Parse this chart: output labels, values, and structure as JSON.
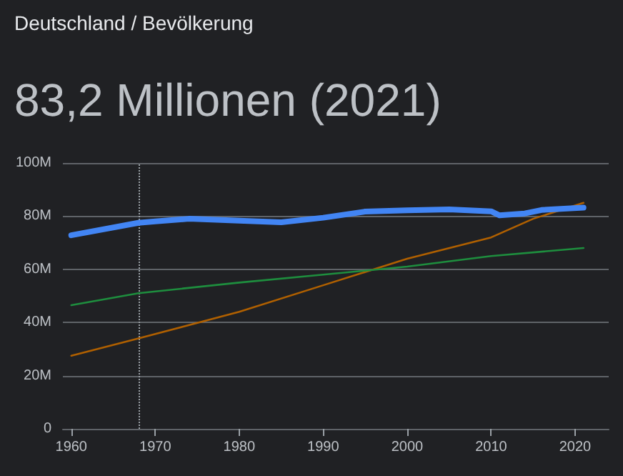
{
  "chart_data": {
    "type": "line",
    "title": "83,2 Millionen (2021)",
    "annotations": [
      "Deutschland / Bevölkerung"
    ],
    "x": [
      1960,
      1968,
      1970,
      1974,
      1980,
      1985,
      1990,
      1995,
      2000,
      2005,
      2010,
      2011,
      2014,
      2016,
      2021
    ],
    "series": [
      {
        "color": "#4285f4",
        "values": [
          72.8,
          77.5,
          78,
          79,
          78.3,
          77.7,
          79.4,
          81.7,
          82.2,
          82.5,
          81.8,
          80.3,
          81,
          82.3,
          83.2
        ]
      },
      {
        "color": "#1e8e3e",
        "x": [
          1960,
          1968,
          1980,
          1990,
          2000,
          2010,
          2021
        ],
        "values": [
          46.5,
          51,
          55,
          58,
          61,
          65,
          68
        ]
      },
      {
        "color": "#b06000",
        "x": [
          1960,
          1968,
          1980,
          1990,
          2000,
          2010,
          2015,
          2021
        ],
        "values": [
          27.5,
          34,
          44,
          54,
          64,
          72,
          79,
          85
        ]
      }
    ],
    "xlim": [
      1959,
      2024
    ],
    "xticks": [
      1960,
      1970,
      1980,
      1990,
      2000,
      2010,
      2020
    ],
    "ylim": [
      0,
      100
    ],
    "yticks": [
      {
        "value": 0,
        "label": "0"
      },
      {
        "value": 20,
        "label": "20M"
      },
      {
        "value": 40,
        "label": "40M"
      },
      {
        "value": 60,
        "label": "60M"
      },
      {
        "value": 80,
        "label": "80M"
      },
      {
        "value": 100,
        "label": "100M"
      }
    ],
    "grid": "y",
    "marker": "none",
    "ref_lines": [
      {
        "axis": "x",
        "value": 1968,
        "color": "#9aa0a6",
        "line_style": "dotted"
      }
    ]
  }
}
